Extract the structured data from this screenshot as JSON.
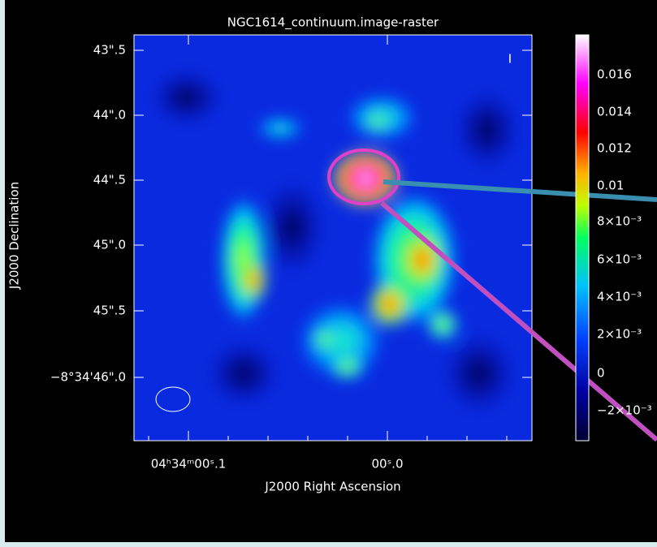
{
  "title": "NGC1614_continuum.image-raster",
  "stokes": "I",
  "x_axis": {
    "label": "J2000 Right Ascension",
    "ticks": [
      "04ʰ34ᵐ00ˢ.1",
      "00ˢ.0"
    ]
  },
  "y_axis": {
    "label": "J2000 Declination",
    "ticks": [
      "43\".5",
      "44\".0",
      "44\".5",
      "45\".0",
      "45\".5",
      "−8°34'46\".0"
    ]
  },
  "colorbar": {
    "ticks": [
      "0.016",
      "0.014",
      "0.012",
      "0.01",
      "8×10⁻³",
      "6×10⁻³",
      "4×10⁻³",
      "2×10⁻³",
      "0",
      "−2×10⁻³"
    ]
  }
}
